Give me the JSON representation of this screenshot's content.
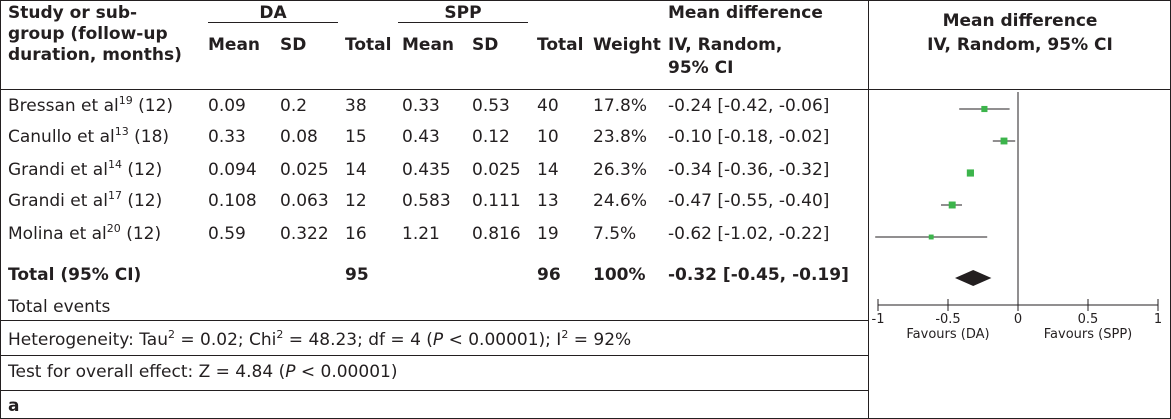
{
  "header": {
    "col1_lines": [
      "Study or sub-",
      "group (follow-up",
      "duration, months)"
    ],
    "group1": "DA",
    "group2": "SPP",
    "effect_header": "Mean difference",
    "mean": "Mean",
    "sd": "SD",
    "total": "Total",
    "weight": "Weight",
    "method_lines": [
      "IV, Random,",
      "95% CI"
    ],
    "plot_header_lines": [
      "Mean difference",
      "IV, Random, 95% CI"
    ]
  },
  "studies": [
    {
      "name": "Bressan et al",
      "ref": "19",
      "followup": "(12)",
      "da_mean": "0.09",
      "da_sd": "0.2",
      "da_total": "38",
      "spp_mean": "0.33",
      "spp_sd": "0.53",
      "spp_total": "40",
      "weight": "17.8%",
      "ci": "-0.24 [-0.42, -0.06]"
    },
    {
      "name": "Canullo et al",
      "ref": "13",
      "followup": "(18)",
      "da_mean": "0.33",
      "da_sd": "0.08",
      "da_total": "15",
      "spp_mean": "0.43",
      "spp_sd": "0.12",
      "spp_total": "10",
      "weight": "23.8%",
      "ci": "-0.10 [-0.18, -0.02]"
    },
    {
      "name": "Grandi et al",
      "ref": "14",
      "followup": "(12)",
      "da_mean": "0.094",
      "da_sd": "0.025",
      "da_total": "14",
      "spp_mean": "0.435",
      "spp_sd": "0.025",
      "spp_total": "14",
      "weight": "26.3%",
      "ci": "-0.34 [-0.36, -0.32]"
    },
    {
      "name": "Grandi et al",
      "ref": "17",
      "followup": "(12)",
      "da_mean": "0.108",
      "da_sd": "0.063",
      "da_total": "12",
      "spp_mean": "0.583",
      "spp_sd": "0.111",
      "spp_total": "13",
      "weight": "24.6%",
      "ci": "-0.47 [-0.55, -0.40]"
    },
    {
      "name": "Molina et al",
      "ref": "20",
      "followup": "(12)",
      "da_mean": "0.59",
      "da_sd": "0.322",
      "da_total": "16",
      "spp_mean": "1.21",
      "spp_sd": "0.816",
      "spp_total": "19",
      "weight": "7.5%",
      "ci": "-0.62 [-1.02, -0.22]"
    }
  ],
  "total_row": {
    "label": "Total (95% CI)",
    "da_total": "95",
    "spp_total": "96",
    "weight": "100%",
    "ci": "-0.32 [-0.45, -0.19]"
  },
  "footer": {
    "total_events": "Total events",
    "heterogeneity": {
      "p1": "Heterogeneity: Tau",
      "sup1": "2",
      "p2": " = 0.02; Chi",
      "sup2": "2",
      "p3": " = 48.23; df = 4 (",
      "italic": "P",
      "p4": " < 0.00001); I",
      "sup3": "2",
      "p5": " = 92%"
    },
    "overall": {
      "p1": "Test for overall effect: Z = 4.84 (",
      "italic": "P",
      "p2": " < 0.00001)"
    },
    "panel_label": "a"
  },
  "chart_data": {
    "type": "forest",
    "xlim": [
      -1,
      1
    ],
    "xticks": [
      "-1",
      "-0.5",
      "0",
      "0.5",
      "1"
    ],
    "favours_left": "Favours (DA)",
    "favours_right": "Favours (SPP)",
    "colors": {
      "marker": "#3cb44b",
      "diamond": "#231f20",
      "line": "#231f20"
    },
    "studies": [
      {
        "md": -0.24,
        "lo": -0.42,
        "hi": -0.06,
        "weight": 17.8
      },
      {
        "md": -0.1,
        "lo": -0.18,
        "hi": -0.02,
        "weight": 23.8
      },
      {
        "md": -0.34,
        "lo": -0.36,
        "hi": -0.32,
        "weight": 26.3
      },
      {
        "md": -0.47,
        "lo": -0.55,
        "hi": -0.4,
        "weight": 24.6
      },
      {
        "md": -0.62,
        "lo": -1.02,
        "hi": -0.22,
        "weight": 7.5
      }
    ],
    "pooled": {
      "md": -0.32,
      "lo": -0.45,
      "hi": -0.19
    }
  }
}
